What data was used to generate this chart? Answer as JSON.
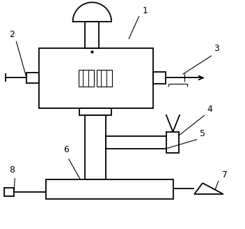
{
  "bg_color": "#ffffff",
  "line_color": "#000000",
  "lw": 1.3,
  "lw_thin": 0.8,
  "label_fontsize": 9,
  "fig_w": 3.52,
  "fig_h": 3.28,
  "dpi": 100
}
